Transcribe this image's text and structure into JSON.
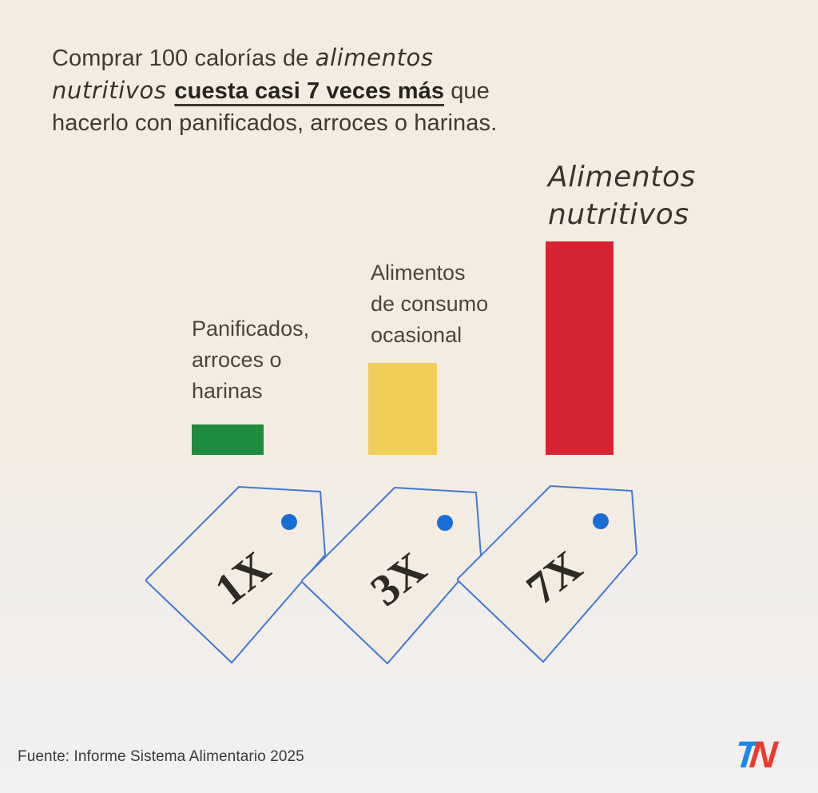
{
  "chart_data": {
    "type": "bar",
    "categories": [
      "Panificados, arroces o harinas",
      "Alimentos de consumo ocasional",
      "Alimentos nutritivos"
    ],
    "values": [
      1,
      3,
      7
    ],
    "value_labels": [
      "1X",
      "3X",
      "7X"
    ],
    "colors": [
      "#1f8b3e",
      "#f1ce57",
      "#d62531"
    ],
    "title": "Comprar 100 calorías de alimentos nutritivos cuesta casi 7 veces más que hacerlo con panificados, arroces o harinas.",
    "xlabel": "",
    "ylabel": "",
    "legend": "none",
    "grid": false,
    "source": "Fuente: Informe Sistema Alimentario 2025"
  },
  "title": {
    "line1_regular": "Comprar 100 calorías de ",
    "line1_script": "alimentos",
    "line2_script": "nutritivos ",
    "line2_bold": "cuesta casi 7 veces más",
    "line2_after": " que",
    "line3": "hacerlo con panificados, arroces o harinas."
  },
  "labels": {
    "bar1": "Panificados,\narroces o\nharinas",
    "bar2": "Alimentos\nde consumo\nocasional",
    "bar3": "Alimentos\nnutritivos"
  },
  "tags": [
    {
      "label": "1X"
    },
    {
      "label": "3X"
    },
    {
      "label": "7X"
    }
  ],
  "colors": {
    "tag_outline": "#4079d6",
    "tag_fill": "#f2ece2",
    "tag_dot": "#196ed3",
    "logo_blue": "#1f87e8",
    "logo_red": "#ee382c"
  },
  "footer": {
    "source": "Fuente: Informe Sistema Alimentario 2025",
    "logo_t": "T",
    "logo_n": "N"
  }
}
